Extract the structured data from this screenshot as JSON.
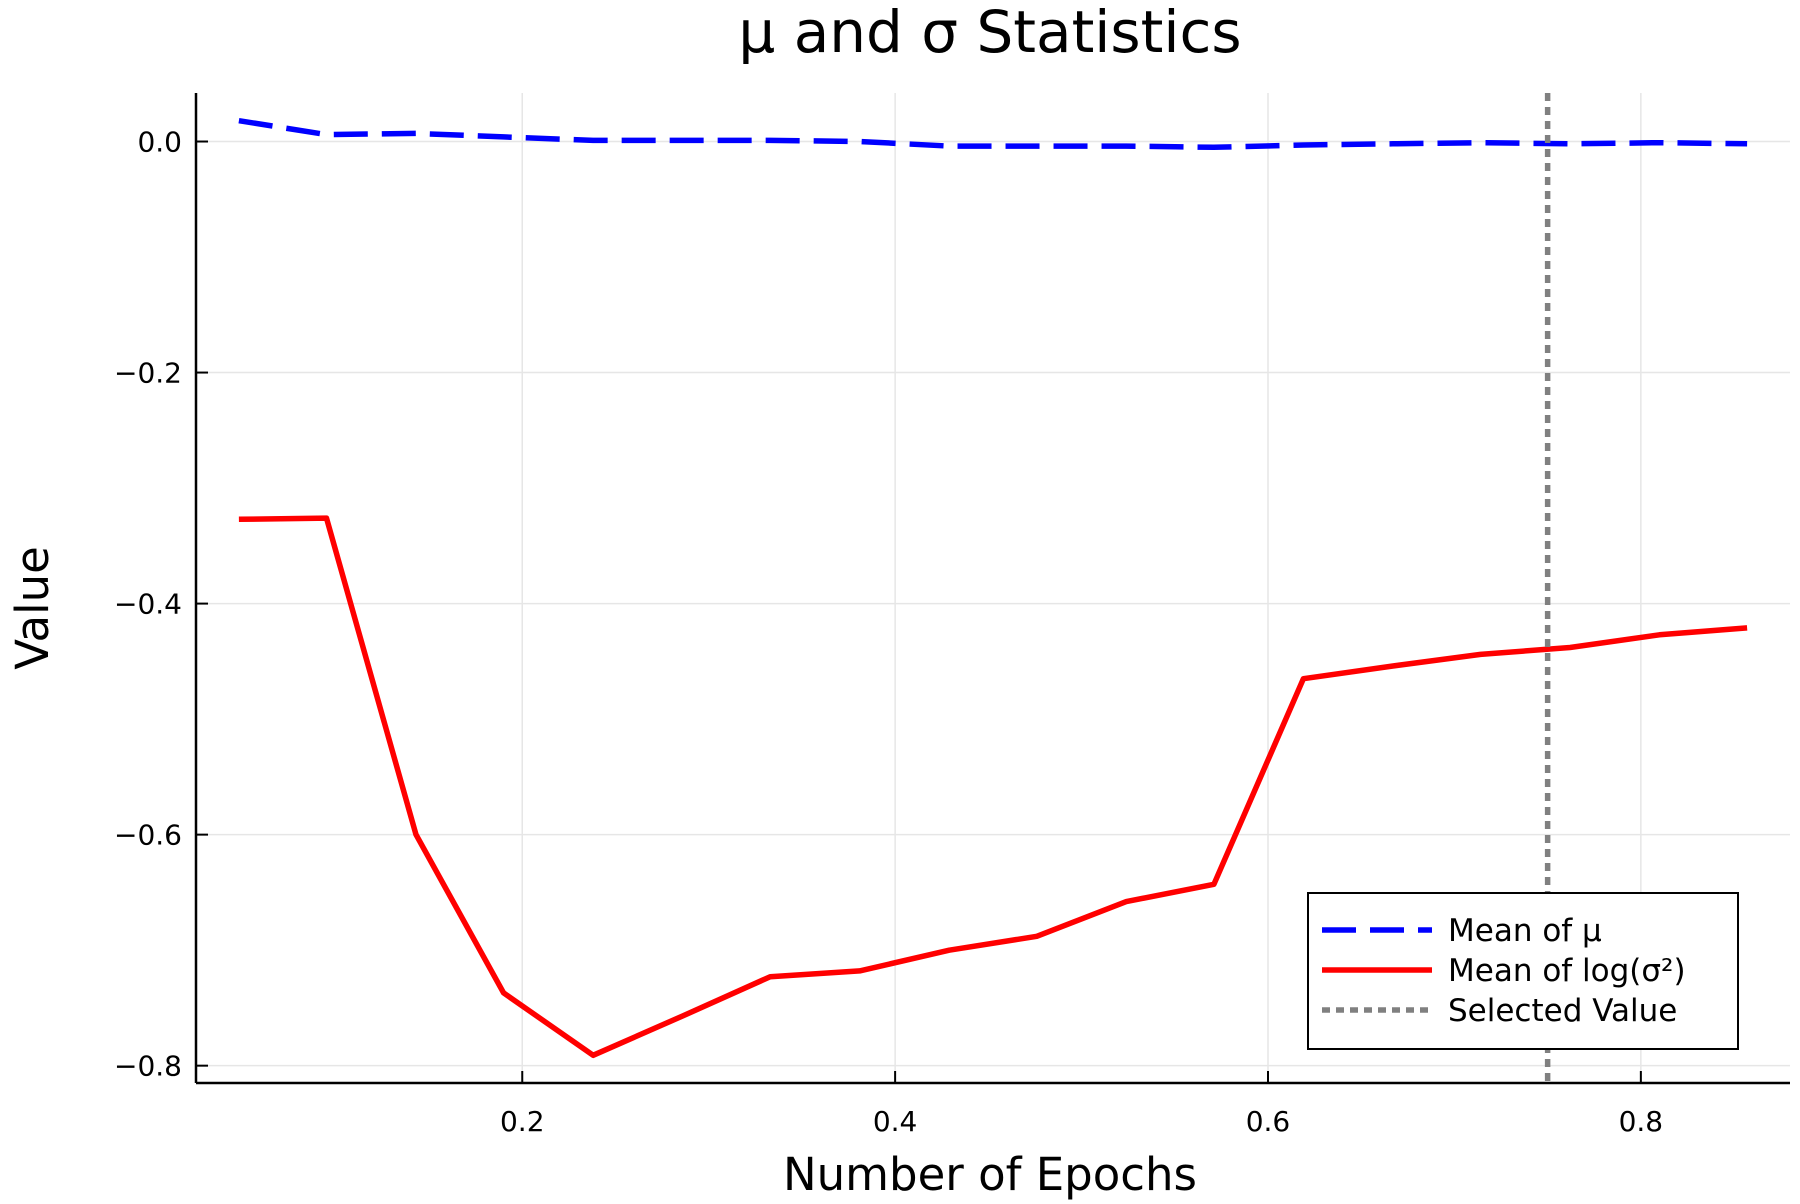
{
  "chart_data": {
    "type": "line",
    "title": "μ and σ Statistics",
    "xlabel": "Number of Epochs",
    "ylabel": "Value",
    "xlim": [
      0.025,
      0.88
    ],
    "ylim": [
      -0.815,
      0.042
    ],
    "x_ticks": [
      0.2,
      0.4,
      0.6,
      0.8
    ],
    "x_tick_labels": [
      "0.2",
      "0.4",
      "0.6",
      "0.8"
    ],
    "y_ticks": [
      0.0,
      -0.2,
      -0.4,
      -0.6,
      -0.8
    ],
    "y_tick_labels": [
      "0.0",
      "−0.2",
      "−0.4",
      "−0.6",
      "−0.8"
    ],
    "grid": true,
    "legend_position": "bottom-right",
    "series": [
      {
        "name": "Mean of μ",
        "color": "#0000ff",
        "style": "dashed",
        "x": [
          0.048,
          0.095,
          0.143,
          0.19,
          0.238,
          0.286,
          0.333,
          0.381,
          0.429,
          0.476,
          0.524,
          0.571,
          0.619,
          0.667,
          0.714,
          0.762,
          0.81,
          0.857
        ],
        "y": [
          0.018,
          0.006,
          0.007,
          0.004,
          0.001,
          0.001,
          0.001,
          0.0,
          -0.004,
          -0.004,
          -0.004,
          -0.005,
          -0.003,
          -0.002,
          -0.001,
          -0.002,
          -0.001,
          -0.002
        ]
      },
      {
        "name": "Mean of log(σ²)",
        "color": "#ff0000",
        "style": "solid",
        "x": [
          0.048,
          0.095,
          0.143,
          0.19,
          0.238,
          0.286,
          0.333,
          0.381,
          0.429,
          0.476,
          0.524,
          0.571,
          0.619,
          0.667,
          0.714,
          0.762,
          0.81,
          0.857
        ],
        "y": [
          -0.327,
          -0.326,
          -0.6,
          -0.737,
          -0.791,
          -0.757,
          -0.723,
          -0.718,
          -0.7,
          -0.688,
          -0.658,
          -0.643,
          -0.465,
          -0.454,
          -0.444,
          -0.438,
          -0.427,
          -0.421
        ]
      }
    ],
    "vlines": [
      {
        "name": "Selected Value",
        "x": 0.75,
        "color": "#808080",
        "style": "dotted"
      }
    ]
  }
}
